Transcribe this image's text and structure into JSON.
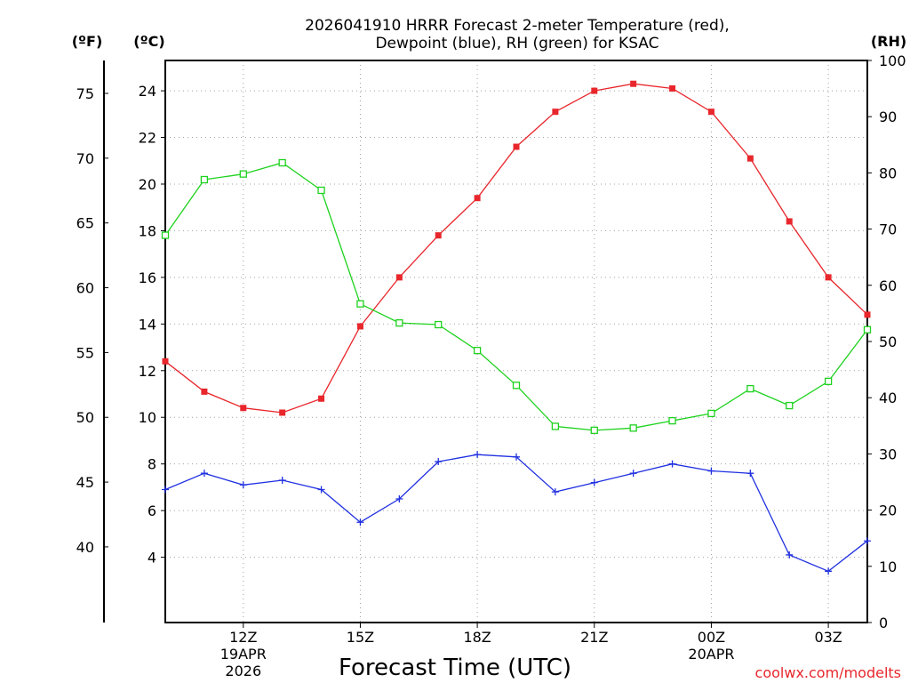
{
  "chart_data": {
    "type": "line",
    "title_line1": "2026041910 HRRR Forecast 2-meter Temperature (red),",
    "title_line2": "Dewpoint (blue), RH (green) for KSAC",
    "xlabel": "Forecast Time (UTC)",
    "credit": "coolwx.com/modelts",
    "unit_f": "(ºF)",
    "unit_c": "(ºC)",
    "unit_rh": "(RH)",
    "x_hours_range": [
      10,
      28
    ],
    "x_ticks": [
      {
        "hour": 12,
        "label": "12Z",
        "sub1": "19APR",
        "sub2": "2026"
      },
      {
        "hour": 15,
        "label": "15Z",
        "sub1": "",
        "sub2": ""
      },
      {
        "hour": 18,
        "label": "18Z",
        "sub1": "",
        "sub2": ""
      },
      {
        "hour": 21,
        "label": "21Z",
        "sub1": "",
        "sub2": ""
      },
      {
        "hour": 24,
        "label": "00Z",
        "sub1": "20APR",
        "sub2": ""
      },
      {
        "hour": 27,
        "label": "03Z",
        "sub1": "",
        "sub2": ""
      }
    ],
    "y_celsius_range": [
      1.2,
      25.3
    ],
    "y_celsius_ticks": [
      "4",
      "6",
      "8",
      "10",
      "12",
      "14",
      "16",
      "18",
      "20",
      "22",
      "24"
    ],
    "y_fahrenheit_ticks": [
      "40",
      "45",
      "50",
      "55",
      "60",
      "65",
      "70",
      "75"
    ],
    "y_rh_range": [
      0,
      100
    ],
    "y_rh_ticks": [
      "0",
      "10",
      "20",
      "30",
      "40",
      "50",
      "60",
      "70",
      "80",
      "90",
      "100"
    ],
    "series": [
      {
        "name": "2-meter Temperature",
        "axis": "celsius",
        "color": "#e8262b",
        "marker": "filled-square",
        "x_hours": [
          10,
          11,
          12,
          13,
          14,
          15,
          16,
          17,
          18,
          19,
          20,
          21,
          22,
          23,
          24,
          25,
          26,
          27,
          28
        ],
        "values": [
          12.4,
          11.1,
          10.4,
          10.2,
          10.8,
          13.9,
          16.0,
          17.8,
          19.4,
          21.6,
          23.1,
          24.0,
          24.3,
          24.1,
          23.1,
          21.1,
          18.4,
          16.0,
          14.4
        ]
      },
      {
        "name": "Dewpoint",
        "axis": "celsius",
        "color": "#2030e0",
        "marker": "plus",
        "x_hours": [
          10,
          11,
          12,
          13,
          14,
          15,
          16,
          17,
          18,
          19,
          20,
          21,
          22,
          23,
          24,
          25,
          26,
          27,
          28
        ],
        "values": [
          6.9,
          7.6,
          7.1,
          7.3,
          6.9,
          5.5,
          6.5,
          8.1,
          8.4,
          8.3,
          6.8,
          7.2,
          7.6,
          8.0,
          7.7,
          7.6,
          4.1,
          3.4,
          4.7
        ]
      },
      {
        "name": "RH",
        "axis": "rh",
        "color": "#1ed21e",
        "marker": "open-square",
        "x_hours": [
          10,
          11,
          12,
          13,
          14,
          15,
          16,
          17,
          18,
          19,
          20,
          21,
          22,
          23,
          24,
          25,
          26,
          27,
          28
        ],
        "values": [
          68.9,
          78.8,
          79.8,
          81.8,
          76.9,
          56.7,
          53.3,
          53.0,
          48.4,
          42.2,
          34.9,
          34.2,
          34.6,
          35.9,
          37.2,
          41.6,
          38.6,
          42.9,
          52.1
        ]
      }
    ]
  }
}
